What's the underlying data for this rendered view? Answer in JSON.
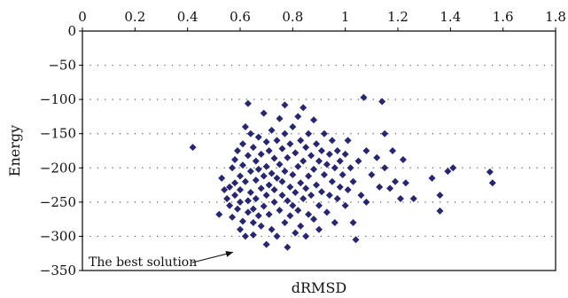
{
  "chart_data": {
    "type": "scatter",
    "xlabel": "dRMSD",
    "ylabel": "Energy",
    "xlim": [
      0,
      1.8
    ],
    "ylim": [
      -350,
      0
    ],
    "x_axis_position": "top",
    "x_ticks": [
      0,
      0.2,
      0.4,
      0.6,
      0.8,
      1,
      1.2,
      1.4,
      1.6,
      1.8
    ],
    "x_tick_labels": [
      "0",
      "0.2",
      "0.4",
      "0.6",
      "0.8",
      "1",
      "1.2",
      "1.4",
      "1.6",
      "1.8"
    ],
    "y_ticks": [
      0,
      -50,
      -100,
      -150,
      -200,
      -250,
      -300,
      -350
    ],
    "y_tick_labels": [
      "0",
      "−50",
      "−100",
      "−150",
      "−200",
      "−250",
      "−300",
      "−350"
    ],
    "grid": "dotted horizontal",
    "marker": "diamond",
    "marker_color": "#262672",
    "annotation": {
      "text": "The best solution",
      "x": 0.58,
      "y": -322
    },
    "points": [
      [
        0.42,
        -170
      ],
      [
        0.52,
        -268
      ],
      [
        0.53,
        -215
      ],
      [
        0.54,
        -232
      ],
      [
        0.55,
        -245
      ],
      [
        0.56,
        -255
      ],
      [
        0.56,
        -228
      ],
      [
        0.57,
        -200
      ],
      [
        0.57,
        -272
      ],
      [
        0.58,
        -188
      ],
      [
        0.58,
        -240
      ],
      [
        0.58,
        -222
      ],
      [
        0.59,
        -260
      ],
      [
        0.59,
        -175
      ],
      [
        0.6,
        -212
      ],
      [
        0.6,
        -232
      ],
      [
        0.6,
        -250
      ],
      [
        0.6,
        -290
      ],
      [
        0.61,
        -165
      ],
      [
        0.61,
        -196
      ],
      [
        0.61,
        -278
      ],
      [
        0.62,
        -140
      ],
      [
        0.62,
        -220
      ],
      [
        0.62,
        -300
      ],
      [
        0.63,
        -248
      ],
      [
        0.63,
        -182
      ],
      [
        0.63,
        -265
      ],
      [
        0.63,
        -106
      ],
      [
        0.64,
        -205
      ],
      [
        0.64,
        -150
      ],
      [
        0.64,
        -236
      ],
      [
        0.65,
        -280
      ],
      [
        0.65,
        -170
      ],
      [
        0.65,
        -260
      ],
      [
        0.65,
        -298
      ],
      [
        0.66,
        -190
      ],
      [
        0.66,
        -218
      ],
      [
        0.66,
        -245
      ],
      [
        0.67,
        -155
      ],
      [
        0.67,
        -270
      ],
      [
        0.67,
        -202
      ],
      [
        0.68,
        -230
      ],
      [
        0.68,
        -180
      ],
      [
        0.68,
        -285
      ],
      [
        0.69,
        -120
      ],
      [
        0.69,
        -212
      ],
      [
        0.69,
        -256
      ],
      [
        0.7,
        -162
      ],
      [
        0.7,
        -240
      ],
      [
        0.7,
        -198
      ],
      [
        0.7,
        -312
      ],
      [
        0.71,
        -225
      ],
      [
        0.71,
        -175
      ],
      [
        0.71,
        -268
      ],
      [
        0.72,
        -145
      ],
      [
        0.72,
        -208
      ],
      [
        0.72,
        -290
      ],
      [
        0.73,
        -186
      ],
      [
        0.73,
        -250
      ],
      [
        0.73,
        -232
      ],
      [
        0.74,
        -160
      ],
      [
        0.74,
        -215
      ],
      [
        0.74,
        -300
      ],
      [
        0.75,
        -128
      ],
      [
        0.75,
        -195
      ],
      [
        0.75,
        -262
      ],
      [
        0.76,
        -172
      ],
      [
        0.76,
        -240
      ],
      [
        0.76,
        -220
      ],
      [
        0.77,
        -108
      ],
      [
        0.77,
        -150
      ],
      [
        0.77,
        -205
      ],
      [
        0.77,
        -280
      ],
      [
        0.78,
        -185
      ],
      [
        0.78,
        -248
      ],
      [
        0.78,
        -316
      ],
      [
        0.79,
        -165
      ],
      [
        0.79,
        -228
      ],
      [
        0.79,
        -270
      ],
      [
        0.8,
        -140
      ],
      [
        0.8,
        -210
      ],
      [
        0.8,
        -255
      ],
      [
        0.81,
        -178
      ],
      [
        0.81,
        -236
      ],
      [
        0.81,
        -295
      ],
      [
        0.82,
        -125
      ],
      [
        0.82,
        -198
      ],
      [
        0.82,
        -262
      ],
      [
        0.83,
        -160
      ],
      [
        0.83,
        -222
      ],
      [
        0.83,
        -285
      ],
      [
        0.84,
        -112
      ],
      [
        0.84,
        -190
      ],
      [
        0.84,
        -245
      ],
      [
        0.85,
        -170
      ],
      [
        0.85,
        -230
      ],
      [
        0.85,
        -300
      ],
      [
        0.86,
        -150
      ],
      [
        0.86,
        -212
      ],
      [
        0.86,
        -268
      ],
      [
        0.87,
        -182
      ],
      [
        0.87,
        -240
      ],
      [
        0.88,
        -130
      ],
      [
        0.88,
        -202
      ],
      [
        0.88,
        -275
      ],
      [
        0.89,
        -165
      ],
      [
        0.89,
        -225
      ],
      [
        0.9,
        -190
      ],
      [
        0.9,
        -255
      ],
      [
        0.9,
        -290
      ],
      [
        0.91,
        -175
      ],
      [
        0.91,
        -235
      ],
      [
        0.92,
        -150
      ],
      [
        0.92,
        -210
      ],
      [
        0.93,
        -195
      ],
      [
        0.93,
        -265
      ],
      [
        0.94,
        -180
      ],
      [
        0.94,
        -240
      ],
      [
        0.95,
        -160
      ],
      [
        0.95,
        -220
      ],
      [
        0.96,
        -200
      ],
      [
        0.96,
        -280
      ],
      [
        0.97,
        -175
      ],
      [
        0.97,
        -245
      ],
      [
        0.98,
        -190
      ],
      [
        0.98,
        -228
      ],
      [
        0.99,
        -210
      ],
      [
        1.0,
        -180
      ],
      [
        1.0,
        -255
      ],
      [
        1.01,
        -160
      ],
      [
        1.01,
        -232
      ],
      [
        1.02,
        -200
      ],
      [
        1.03,
        -220
      ],
      [
        1.03,
        -280
      ],
      [
        1.04,
        -305
      ],
      [
        1.05,
        -190
      ],
      [
        1.06,
        -240
      ],
      [
        1.07,
        -97
      ],
      [
        1.08,
        -175
      ],
      [
        1.08,
        -250
      ],
      [
        1.1,
        -210
      ],
      [
        1.12,
        -185
      ],
      [
        1.13,
        -228
      ],
      [
        1.14,
        -103
      ],
      [
        1.15,
        -150
      ],
      [
        1.15,
        -200
      ],
      [
        1.17,
        -230
      ],
      [
        1.18,
        -175
      ],
      [
        1.19,
        -220
      ],
      [
        1.21,
        -245
      ],
      [
        1.22,
        -188
      ],
      [
        1.23,
        -222
      ],
      [
        1.26,
        -245
      ],
      [
        1.33,
        -215
      ],
      [
        1.36,
        -240
      ],
      [
        1.36,
        -263
      ],
      [
        1.39,
        -205
      ],
      [
        1.41,
        -200
      ],
      [
        1.55,
        -206
      ],
      [
        1.56,
        -222
      ]
    ]
  }
}
